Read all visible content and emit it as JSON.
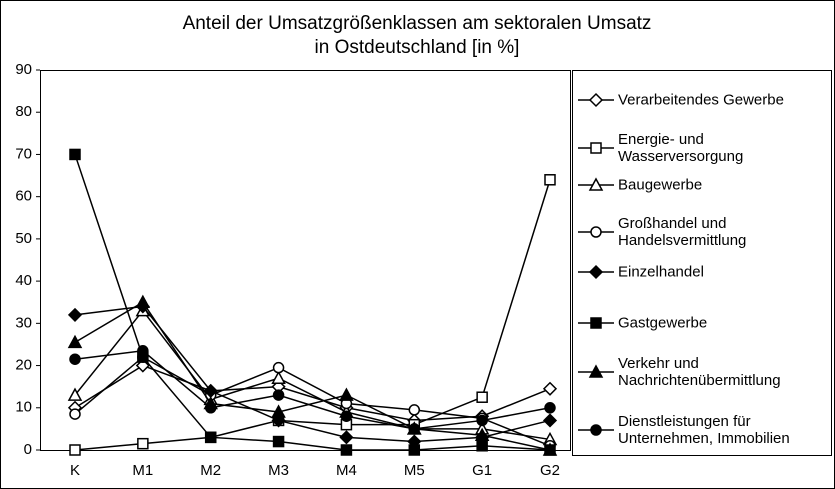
{
  "chart_data": {
    "type": "line",
    "title": [
      "Anteil der Umsatzgrößenklassen am sektoralen Umsatz",
      "in Ostdeutschland [in %]"
    ],
    "categories": [
      "K",
      "M1",
      "M2",
      "M3",
      "M4",
      "M5",
      "G1",
      "G2"
    ],
    "ylim": [
      0,
      90
    ],
    "yticks": [
      0,
      10,
      20,
      30,
      40,
      50,
      60,
      70,
      80,
      90
    ],
    "grid": false,
    "legend": "right",
    "series": [
      {
        "name": "Verarbeitendes Gewerbe",
        "color": "#000000",
        "marker": "diamond-open",
        "values": [
          10,
          20,
          14,
          15,
          10,
          7,
          8,
          14.5
        ]
      },
      {
        "name": "Energie- und Wasserversorgung",
        "color": "#000000",
        "marker": "square-open",
        "values": [
          0,
          1.5,
          3,
          7,
          6,
          6,
          12.5,
          64
        ]
      },
      {
        "name": "Baugewerbe",
        "color": "#000000",
        "marker": "triangle-open",
        "values": [
          13,
          33,
          12,
          17,
          9,
          5,
          5,
          2.5
        ]
      },
      {
        "name": "Großhandel und Handelsvermittlung",
        "color": "#000000",
        "marker": "circle-open",
        "values": [
          8.5,
          22,
          13,
          19.5,
          11,
          9.5,
          7.5,
          1
        ]
      },
      {
        "name": "Einzelhandel",
        "color": "#000000",
        "marker": "diamond-filled",
        "values": [
          32,
          34,
          14,
          7,
          3,
          2,
          3,
          7
        ]
      },
      {
        "name": "Gastgewerbe",
        "color": "#000000",
        "marker": "square-filled",
        "values": [
          70,
          22,
          3,
          2,
          0,
          0,
          1,
          0
        ]
      },
      {
        "name": "Verkehr und Nachrichtenübermittlung",
        "color": "#000000",
        "marker": "triangle-filled",
        "values": [
          25.5,
          35,
          11,
          9,
          13,
          5,
          3.5,
          0
        ]
      },
      {
        "name": "Dienstleistungen für Unternehmen, Immobilien",
        "color": "#000000",
        "marker": "circle-filled",
        "values": [
          21.5,
          23.5,
          10,
          13,
          8,
          5,
          7,
          10
        ]
      }
    ]
  }
}
